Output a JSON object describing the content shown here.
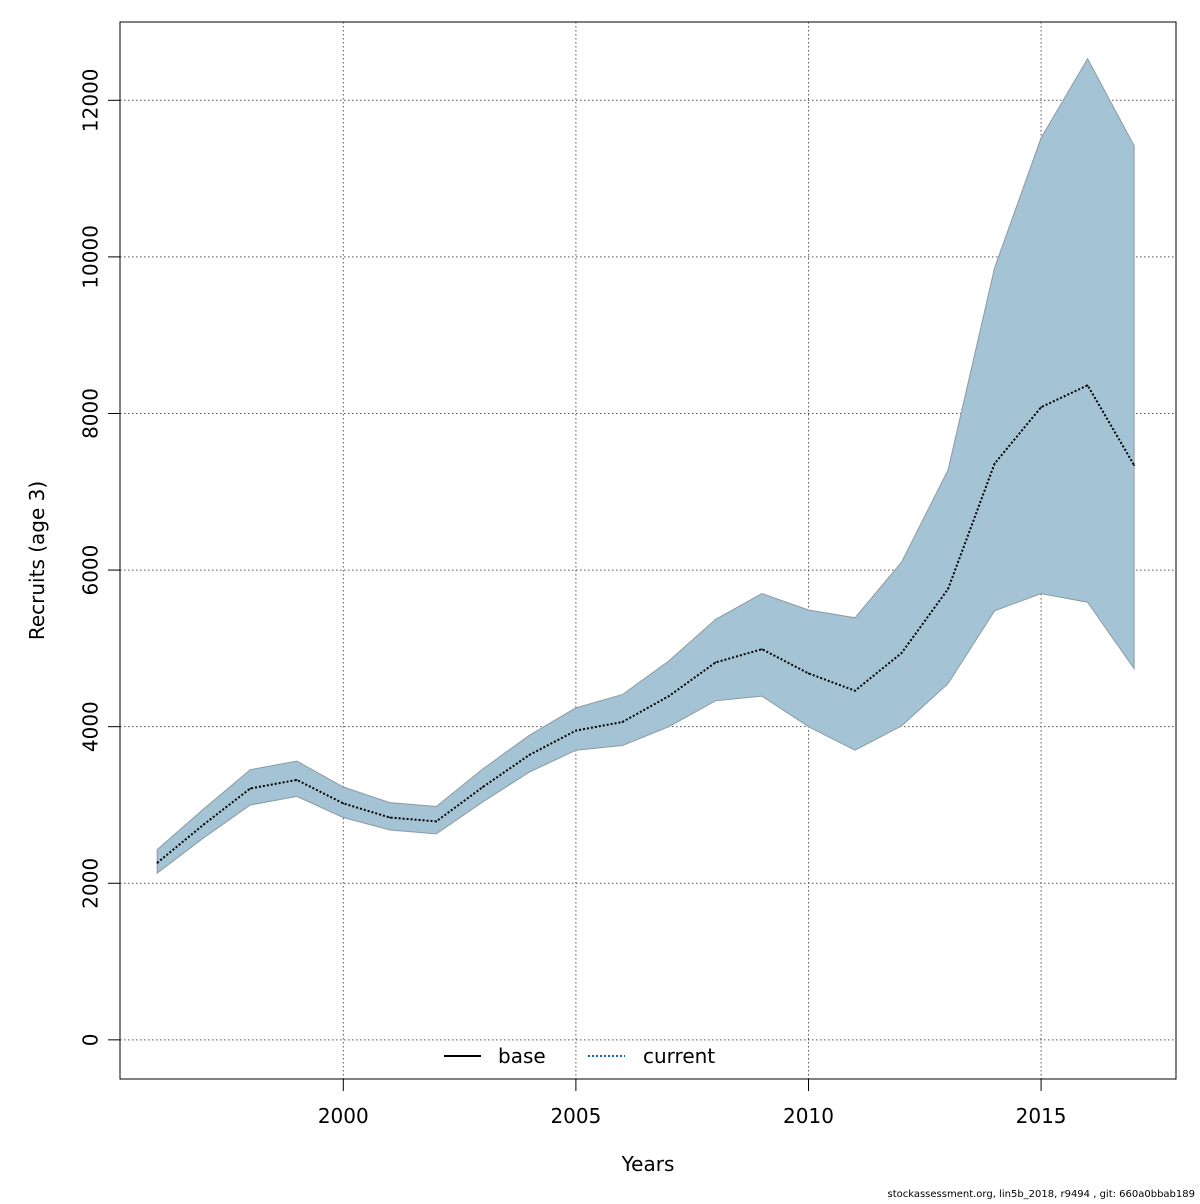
{
  "chart_data": {
    "type": "line",
    "xlabel": "Years",
    "ylabel": "Recruits (age 3)",
    "xlim": [
      1995.2,
      2017.9
    ],
    "ylim": [
      -500,
      13000
    ],
    "xticks": [
      2000,
      2005,
      2010,
      2015
    ],
    "yticks": [
      0,
      2000,
      4000,
      6000,
      8000,
      10000,
      12000
    ],
    "grid": true,
    "grid_style": "dotted",
    "legend_placement": "bottom",
    "legend": [
      {
        "label": "base",
        "line_style": "solid",
        "color": "#000000"
      },
      {
        "label": "current",
        "line_style": "dotted",
        "color": "#1565c0"
      }
    ],
    "colors": {
      "band_fill": "#a4c4d5",
      "band_edge": "#8a9aa4",
      "current_line": "#000000",
      "current_line_accent": "#1565c0",
      "grid": "#555555",
      "frame": "#000000"
    },
    "x": [
      1996,
      1997,
      1998,
      1999,
      2000,
      2001,
      2002,
      2003,
      2004,
      2005,
      2006,
      2007,
      2008,
      2009,
      2010,
      2011,
      2012,
      2013,
      2014,
      2015,
      2016,
      2017
    ],
    "series": [
      {
        "name": "current",
        "values": [
          2260,
          2750,
          3210,
          3320,
          3020,
          2840,
          2790,
          3230,
          3640,
          3950,
          4060,
          4390,
          4820,
          4990,
          4680,
          4460,
          4940,
          5760,
          7360,
          8080,
          8360,
          7340
        ]
      }
    ],
    "band": {
      "lower": [
        2130,
        2580,
        3000,
        3110,
        2840,
        2680,
        2630,
        3040,
        3420,
        3700,
        3760,
        4000,
        4330,
        4390,
        4000,
        3700,
        4010,
        4550,
        5480,
        5700,
        5590,
        4740
      ],
      "upper": [
        2430,
        2950,
        3450,
        3560,
        3230,
        3030,
        2980,
        3460,
        3890,
        4240,
        4410,
        4840,
        5370,
        5700,
        5490,
        5390,
        6100,
        7280,
        9860,
        11520,
        12530,
        11420
      ]
    }
  },
  "footer": {
    "text": "stockassessment.org, lin5b_2018, r9494 , git: 660a0bbab189"
  }
}
